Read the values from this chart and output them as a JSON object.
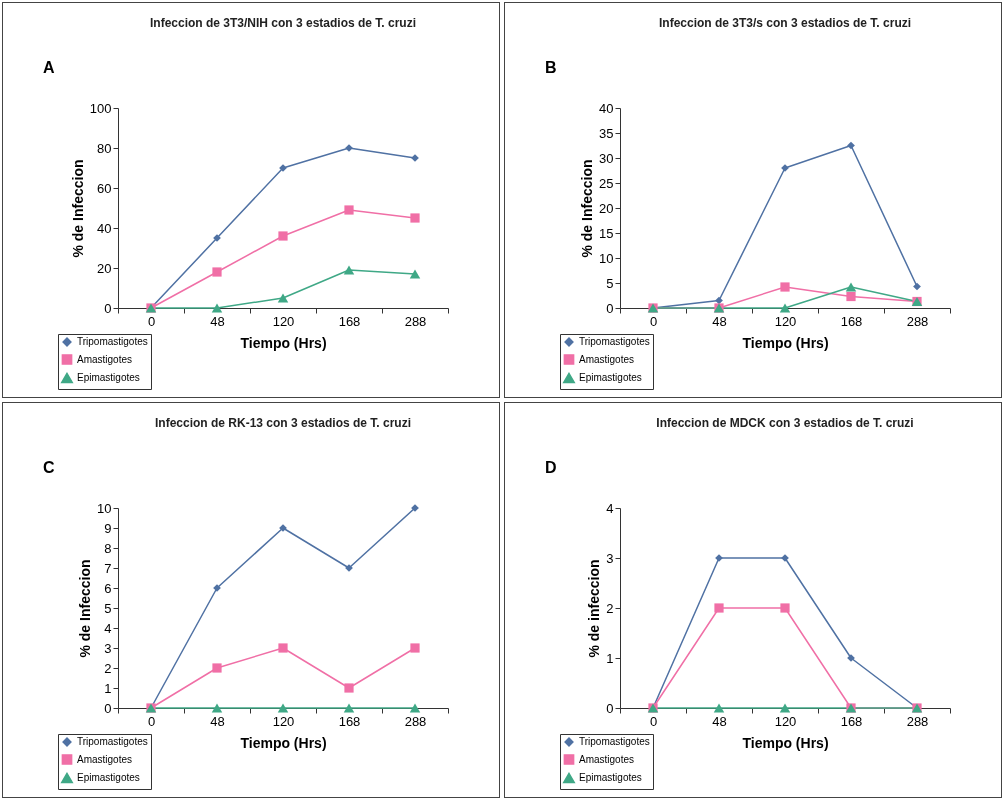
{
  "chart_data": [
    {
      "type": "line",
      "title": "Infeccion de 3T3/NIH con 3 estadios de T. cruzi",
      "annotations": [
        "A"
      ],
      "xlabel": "Tiempo (Hrs)",
      "ylabel": "% de Infeccion",
      "categories": [
        "0",
        "48",
        "120",
        "168",
        "288"
      ],
      "ylim": [
        0,
        100
      ],
      "yticks": [
        0,
        20,
        40,
        60,
        80,
        100
      ],
      "legend": "bottom left",
      "series": [
        {
          "name": "Tripomastigotes",
          "color": "#4f71a3",
          "marker": "diamond",
          "values": [
            0,
            35,
            70,
            80,
            75
          ]
        },
        {
          "name": "Amastigotes",
          "color": "#f06fa6",
          "marker": "square",
          "values": [
            0,
            18,
            36,
            49,
            45
          ]
        },
        {
          "name": "Epimastigotes",
          "color": "#3fa886",
          "marker": "triangle",
          "values": [
            0,
            0,
            5,
            19,
            17
          ]
        }
      ]
    },
    {
      "type": "line",
      "title": "Infeccion de 3T3/s con 3 estadios de T. cruzi",
      "annotations": [
        "B"
      ],
      "xlabel": "Tiempo (Hrs)",
      "ylabel": "% de Infeccion",
      "categories": [
        "0",
        "48",
        "120",
        "168",
        "288"
      ],
      "ylim": [
        0,
        40
      ],
      "yticks": [
        0,
        5,
        10,
        15,
        20,
        25,
        30,
        35,
        40
      ],
      "legend": "bottom left",
      "series": [
        {
          "name": "Tripomastigotes",
          "color": "#4f71a3",
          "marker": "diamond",
          "values": [
            0,
            1.5,
            28,
            32.5,
            4.3
          ]
        },
        {
          "name": "Amastigotes",
          "color": "#f06fa6",
          "marker": "square",
          "values": [
            0,
            0,
            4.2,
            2.3,
            1.3
          ]
        },
        {
          "name": "Epimastigotes",
          "color": "#3fa886",
          "marker": "triangle",
          "values": [
            0,
            0,
            0,
            4.2,
            1.3
          ]
        }
      ]
    },
    {
      "type": "line",
      "title": "Infeccion de RK-13 con 3 estadios de T. cruzi",
      "annotations": [
        "C"
      ],
      "xlabel": "Tiempo (Hrs)",
      "ylabel": "% de Infeccion",
      "categories": [
        "0",
        "48",
        "120",
        "168",
        "288"
      ],
      "ylim": [
        0,
        10
      ],
      "yticks": [
        0,
        1,
        2,
        3,
        4,
        5,
        6,
        7,
        8,
        9,
        10
      ],
      "legend": "bottom left",
      "series": [
        {
          "name": "Tripomastigotes",
          "color": "#4f71a3",
          "marker": "diamond",
          "values": [
            0,
            6,
            9,
            7,
            10
          ]
        },
        {
          "name": "Amastigotes",
          "color": "#f06fa6",
          "marker": "square",
          "values": [
            0,
            2,
            3,
            1,
            3
          ]
        },
        {
          "name": "Epimastigotes",
          "color": "#3fa886",
          "marker": "triangle",
          "values": [
            0,
            0,
            0,
            0,
            0
          ]
        }
      ]
    },
    {
      "type": "line",
      "title": "Infeccion de MDCK con 3 estadios de T. cruzi",
      "annotations": [
        "D"
      ],
      "xlabel": "Tiempo (Hrs)",
      "ylabel": "% de infeccion",
      "categories": [
        "0",
        "48",
        "120",
        "168",
        "288"
      ],
      "ylim": [
        0,
        4
      ],
      "yticks": [
        0,
        1,
        2,
        3,
        4
      ],
      "legend": "bottom left",
      "series": [
        {
          "name": "Tripomastigotes",
          "color": "#4f71a3",
          "marker": "diamond",
          "values": [
            0,
            3,
            3,
            1,
            0
          ]
        },
        {
          "name": "Amastigotes",
          "color": "#f06fa6",
          "marker": "square",
          "values": [
            0,
            2,
            2,
            0,
            0
          ]
        },
        {
          "name": "Epimastigotes",
          "color": "#3fa886",
          "marker": "triangle",
          "values": [
            0,
            0,
            0,
            0,
            0
          ]
        }
      ]
    }
  ]
}
